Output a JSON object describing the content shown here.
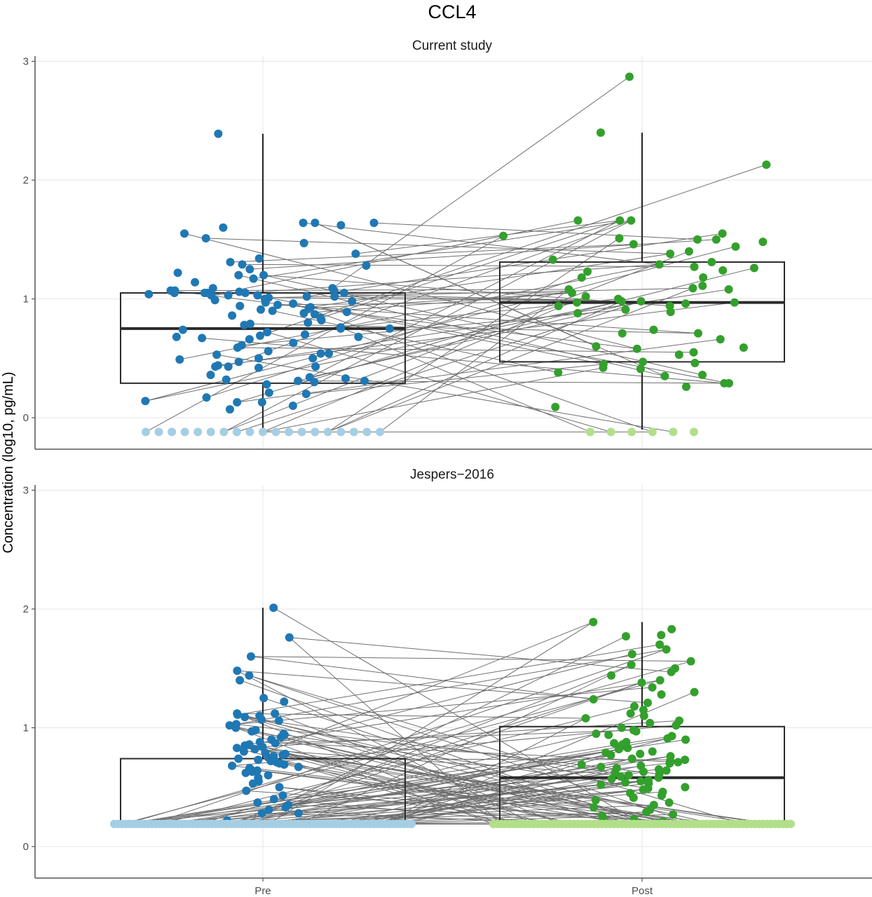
{
  "title": "CCL4",
  "ylabel": "Concentration (log10, pg/mL)",
  "categories": [
    "Pre",
    "Post"
  ],
  "yticks": [
    "0",
    "1",
    "2",
    "3"
  ],
  "colors": {
    "pre": "#1f78b4",
    "pre_lod": "#a6cee3",
    "post": "#33a02c",
    "post_lod": "#b2df8a",
    "box": "#2b2b2b",
    "line": "#6e6e6e"
  },
  "chart_data": [
    {
      "type": "box",
      "panel": "Current study",
      "ylim": [
        -0.27,
        3.0
      ],
      "grid": true,
      "boxes": [
        {
          "group": "Pre",
          "q1": 0.29,
          "median": 0.75,
          "q3": 1.05,
          "whisker_low": -0.1,
          "whisker_high": 2.39
        },
        {
          "group": "Post",
          "q1": 0.47,
          "median": 0.97,
          "q3": 1.31,
          "whisker_low": -0.1,
          "whisker_high": 2.4
        }
      ],
      "pre_values": [
        2.39,
        1.64,
        1.64,
        1.64,
        1.62,
        1.6,
        1.55,
        1.51,
        1.47,
        1.38,
        1.34,
        1.31,
        1.29,
        1.28,
        1.25,
        1.22,
        1.2,
        1.2,
        1.17,
        1.14,
        1.09,
        1.09,
        1.07,
        1.07,
        1.07,
        1.06,
        1.05,
        1.05,
        1.05,
        1.05,
        1.05,
        1.04,
        1.03,
        1.03,
        1.03,
        1.02,
        1.02,
        1.01,
        1.0,
        0.99,
        0.98,
        0.97,
        0.96,
        0.95,
        0.94,
        0.93,
        0.92,
        0.91,
        0.9,
        0.89,
        0.88,
        0.87,
        0.86,
        0.84,
        0.82,
        0.8,
        0.79,
        0.78,
        0.76,
        0.75,
        0.75,
        0.74,
        0.72,
        0.7,
        0.69,
        0.68,
        0.68,
        0.67,
        0.66,
        0.63,
        0.61,
        0.59,
        0.56,
        0.54,
        0.54,
        0.53,
        0.5,
        0.5,
        0.49,
        0.47,
        0.44,
        0.43,
        0.43,
        0.43,
        0.42,
        0.36,
        0.34,
        0.33,
        0.32,
        0.31,
        0.31,
        0.3,
        0.28,
        0.21,
        0.2,
        0.17,
        0.14,
        0.13,
        0.13,
        0.1,
        0.07
      ],
      "pre_lod_count": 19,
      "post_values": [
        2.87,
        2.4,
        2.13,
        1.66,
        1.66,
        1.66,
        1.55,
        1.53,
        1.51,
        1.5,
        1.5,
        1.48,
        1.46,
        1.44,
        1.4,
        1.38,
        1.33,
        1.31,
        1.29,
        1.27,
        1.26,
        1.24,
        1.23,
        1.18,
        1.18,
        1.11,
        1.09,
        1.08,
        1.08,
        1.05,
        1.02,
        1.0,
        0.98,
        0.98,
        0.97,
        0.97,
        0.96,
        0.94,
        0.94,
        0.91,
        0.89,
        0.88,
        0.74,
        0.71,
        0.71,
        0.66,
        0.6,
        0.59,
        0.58,
        0.55,
        0.53,
        0.47,
        0.46,
        0.45,
        0.42,
        0.41,
        0.38,
        0.36,
        0.35,
        0.29,
        0.29,
        0.26,
        0.09
      ],
      "post_lod_count": 6
    },
    {
      "type": "box",
      "panel": "Jespers−2016",
      "ylim": [
        -0.27,
        3.0
      ],
      "grid": true,
      "boxes": [
        {
          "group": "Pre",
          "q1": 0.19,
          "median": 0.19,
          "q3": 0.74,
          "whisker_low": 0.19,
          "whisker_high": 2.01
        },
        {
          "group": "Post",
          "q1": 0.19,
          "median": 0.58,
          "q3": 1.01,
          "whisker_low": 0.19,
          "whisker_high": 1.89
        }
      ],
      "pre_values": [
        2.01,
        1.76,
        1.6,
        1.48,
        1.44,
        1.4,
        1.25,
        1.22,
        1.12,
        1.12,
        1.11,
        1.1,
        1.09,
        1.07,
        1.06,
        1.03,
        1.02,
        1.0,
        0.98,
        0.97,
        0.95,
        0.94,
        0.92,
        0.9,
        0.88,
        0.87,
        0.86,
        0.85,
        0.84,
        0.83,
        0.82,
        0.8,
        0.79,
        0.78,
        0.77,
        0.76,
        0.75,
        0.74,
        0.73,
        0.72,
        0.71,
        0.7,
        0.69,
        0.68,
        0.67,
        0.66,
        0.65,
        0.64,
        0.63,
        0.62,
        0.6,
        0.58,
        0.55,
        0.53,
        0.5,
        0.47,
        0.43,
        0.4,
        0.37,
        0.35,
        0.33,
        0.31,
        0.28,
        0.28,
        0.22
      ],
      "pre_lod_count": 80,
      "post_values": [
        1.89,
        1.83,
        1.78,
        1.77,
        1.7,
        1.66,
        1.62,
        1.56,
        1.53,
        1.5,
        1.47,
        1.44,
        1.4,
        1.38,
        1.34,
        1.3,
        1.28,
        1.24,
        1.21,
        1.18,
        1.15,
        1.12,
        1.1,
        1.08,
        1.06,
        1.04,
        1.02,
        1.0,
        0.98,
        0.97,
        0.95,
        0.94,
        0.93,
        0.91,
        0.9,
        0.88,
        0.87,
        0.86,
        0.84,
        0.83,
        0.82,
        0.8,
        0.79,
        0.78,
        0.77,
        0.76,
        0.74,
        0.73,
        0.72,
        0.71,
        0.7,
        0.69,
        0.68,
        0.67,
        0.66,
        0.65,
        0.64,
        0.63,
        0.62,
        0.61,
        0.6,
        0.59,
        0.58,
        0.57,
        0.56,
        0.55,
        0.54,
        0.53,
        0.52,
        0.5,
        0.49,
        0.48,
        0.46,
        0.45,
        0.43,
        0.41,
        0.39,
        0.37,
        0.35,
        0.33,
        0.31,
        0.29,
        0.27,
        0.26,
        0.23,
        0.22,
        0.21,
        0.2
      ],
      "post_lod_count": 75
    }
  ]
}
